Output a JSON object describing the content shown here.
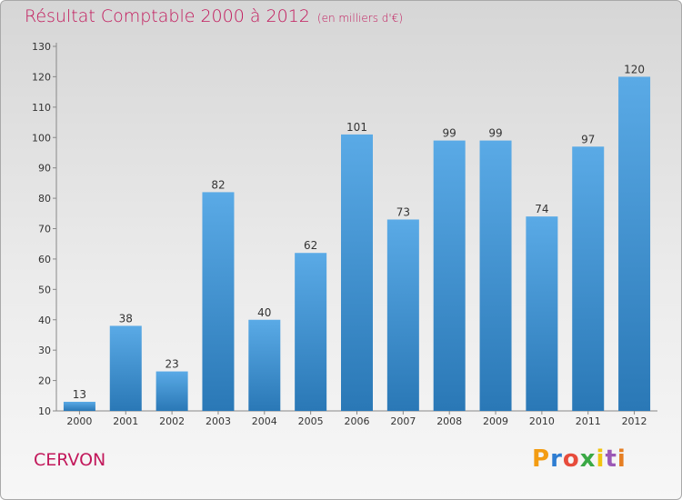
{
  "header": {
    "title": "Résultat Comptable 2000 à 2012",
    "subtitle": "(en milliers d'€)"
  },
  "footer": {
    "location": "CERVON",
    "logo_text": "Proxiti",
    "logo_colors": [
      "#f39c12",
      "#2e7dd1",
      "#e74c3c",
      "#3aa845",
      "#f1c40f",
      "#9b59b6",
      "#e67e22"
    ]
  },
  "chart_data": {
    "type": "bar",
    "title": "Résultat Comptable 2000 à 2012",
    "subtitle": "(en milliers d'€)",
    "categories": [
      "2000",
      "2001",
      "2002",
      "2003",
      "2004",
      "2005",
      "2006",
      "2007",
      "2008",
      "2009",
      "2010",
      "2011",
      "2012"
    ],
    "values": [
      13,
      38,
      23,
      82,
      40,
      62,
      101,
      73,
      99,
      99,
      74,
      97,
      120
    ],
    "ylim": [
      10,
      130
    ],
    "yticks": [
      10,
      20,
      30,
      40,
      50,
      60,
      70,
      80,
      90,
      100,
      110,
      120,
      130
    ],
    "bar_color_top": "#5aaae6",
    "bar_color_bottom": "#2a78b6",
    "grid": false
  }
}
